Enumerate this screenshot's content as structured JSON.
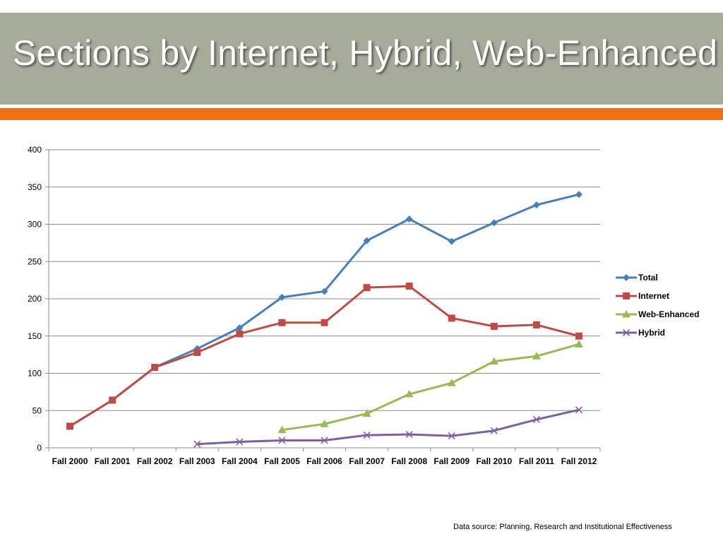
{
  "slide": {
    "title": "Sections by Internet, Hybrid, Web-Enhanced",
    "source": "Data source: Planning, Research and Institutional Effectiveness",
    "colors": {
      "header": "#a7ab9a",
      "accent": "#f07012"
    }
  },
  "chart_data": {
    "type": "line",
    "categories": [
      "Fall 2000",
      "Fall 2001",
      "Fall 2002",
      "Fall 2003",
      "Fall 2004",
      "Fall 2005",
      "Fall 2006",
      "Fall 2007",
      "Fall 2008",
      "Fall 2009",
      "Fall 2010",
      "Fall 2011",
      "Fall 2012"
    ],
    "ylim": [
      0,
      400
    ],
    "yticks": [
      0,
      50,
      100,
      150,
      200,
      250,
      300,
      350,
      400
    ],
    "grid": true,
    "legend_position": "right",
    "series": [
      {
        "name": "Total",
        "color": "#4a7ebb",
        "marker": "diamond",
        "values": [
          29,
          64,
          108,
          133,
          161,
          202,
          210,
          278,
          307,
          277,
          302,
          326,
          340
        ]
      },
      {
        "name": "Internet",
        "color": "#be4b48",
        "marker": "square",
        "values": [
          29,
          64,
          108,
          128,
          153,
          168,
          168,
          215,
          217,
          174,
          163,
          165,
          150
        ]
      },
      {
        "name": "Web-Enhanced",
        "color": "#98b954",
        "marker": "triangle",
        "values": [
          null,
          null,
          null,
          null,
          null,
          24,
          32,
          46,
          72,
          87,
          116,
          123,
          139
        ]
      },
      {
        "name": "Hybrid",
        "color": "#7d60a0",
        "marker": "x",
        "values": [
          null,
          null,
          null,
          5,
          8,
          10,
          10,
          17,
          18,
          16,
          23,
          38,
          51
        ]
      }
    ]
  }
}
